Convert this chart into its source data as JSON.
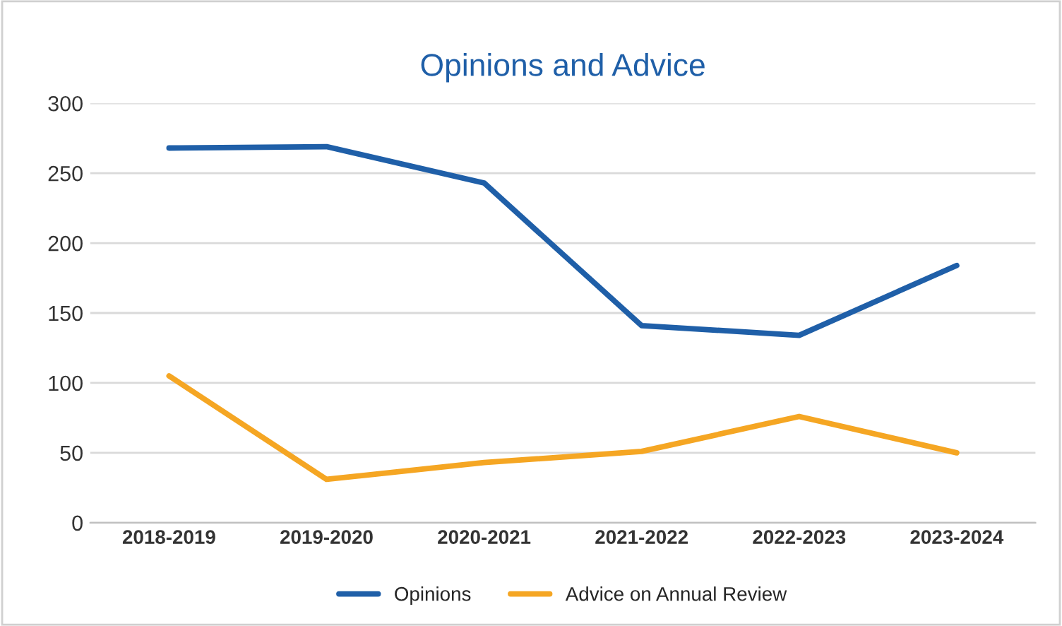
{
  "chart_data": {
    "type": "line",
    "title": "Opinions and Advice",
    "categories": [
      "2018-2019",
      "2019-2020",
      "2020-2021",
      "2021-2022",
      "2022-2023",
      "2023-2024"
    ],
    "series": [
      {
        "name": "Opinions",
        "color": "#1f5fa8",
        "values": [
          268,
          269,
          243,
          141,
          134,
          184
        ]
      },
      {
        "name": "Advice on Annual Review",
        "color": "#f5a623",
        "values": [
          105,
          31,
          43,
          51,
          76,
          50
        ]
      }
    ],
    "ylim": [
      0,
      300
    ],
    "yticks": [
      0,
      50,
      100,
      150,
      200,
      250,
      300
    ],
    "grid": "y",
    "legend": "bottom",
    "marker": "none",
    "line_style": "solid"
  }
}
